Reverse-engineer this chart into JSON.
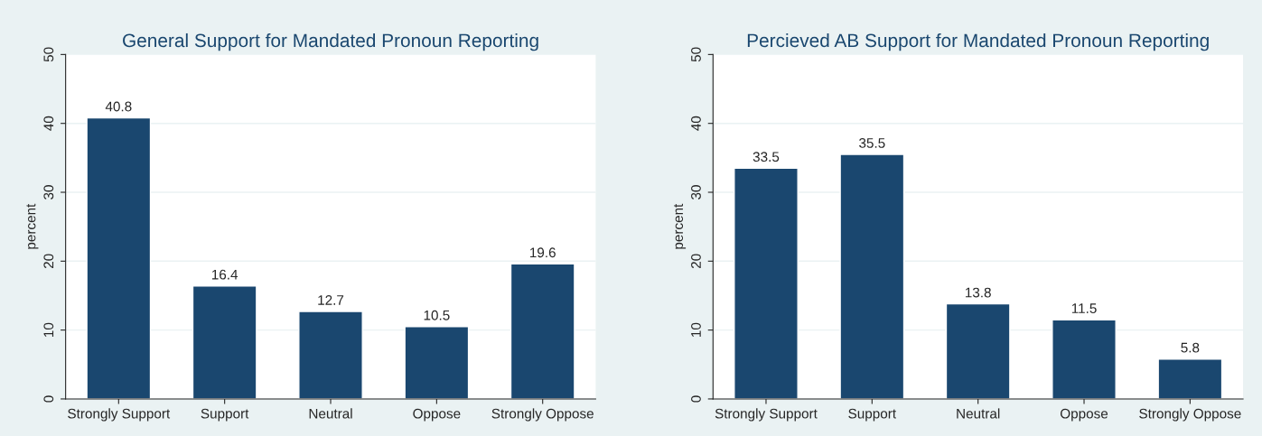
{
  "chart_data": [
    {
      "type": "bar",
      "title": "General Support for Mandated Pronoun Reporting",
      "ylabel": "percent",
      "categories": [
        "Strongly Support",
        "Support",
        "Neutral",
        "Oppose",
        "Strongly Oppose"
      ],
      "values": [
        40.8,
        16.4,
        12.7,
        10.5,
        19.6
      ],
      "color": "#1a476f",
      "ylim": [
        0,
        50
      ],
      "yticks": [
        0,
        10,
        20,
        30,
        40,
        50
      ],
      "grid": "y",
      "data_labels": true
    },
    {
      "type": "bar",
      "title": "Percieved AB Support for Mandated Pronoun Reporting",
      "ylabel": "percent",
      "categories": [
        "Strongly Support",
        "Support",
        "Neutral",
        "Oppose",
        "Strongly Oppose"
      ],
      "values": [
        33.5,
        35.5,
        13.8,
        11.5,
        5.8
      ],
      "color": "#1a476f",
      "ylim": [
        0,
        50
      ],
      "yticks": [
        0,
        10,
        20,
        30,
        40,
        50
      ],
      "grid": "y",
      "data_labels": true
    }
  ]
}
